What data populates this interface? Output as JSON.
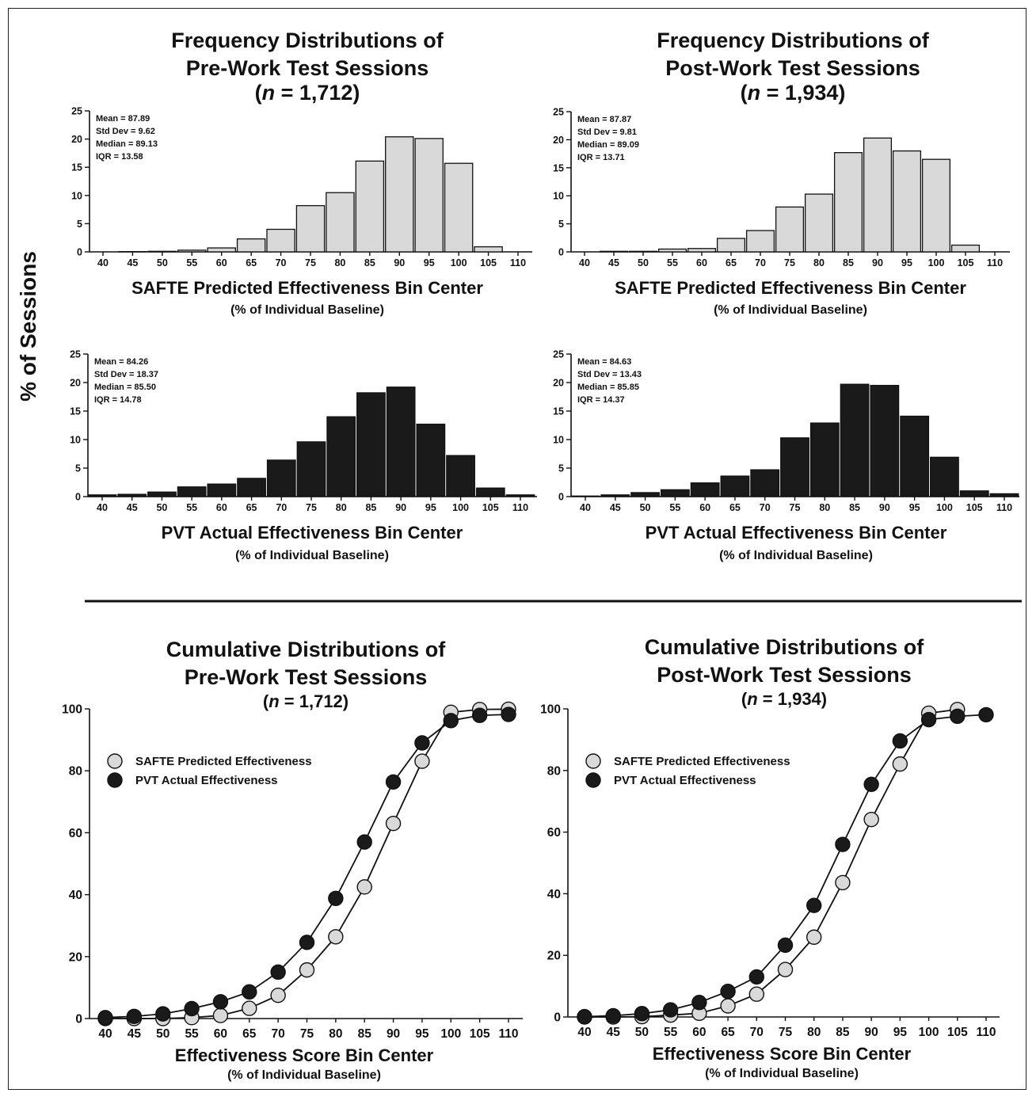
{
  "figure": {
    "y_label": "% of Sessions",
    "panel_titles": {
      "freq_pre": [
        "Frequency Distributions of",
        "Pre-Work Test Sessions"
      ],
      "freq_post": [
        "Frequency Distributions of",
        "Post-Work Test Sessions"
      ],
      "cum_pre": [
        "Cumulative Distributions of",
        "Pre-Work Test Sessions"
      ],
      "cum_post": [
        "Cumulative Distributions of",
        "Post-Work Test Sessions"
      ]
    },
    "n_pre": "1,712",
    "n_post": "1,934",
    "n_prefix": "n",
    "n_eq": " = "
  },
  "chart_data": [
    {
      "id": "safte_pre",
      "type": "bar",
      "xlabel": "SAFTE Predicted Effectiveness Bin Center",
      "xsublabel": "(% of Individual Baseline)",
      "categories": [
        40,
        45,
        50,
        55,
        60,
        65,
        70,
        75,
        80,
        85,
        90,
        95,
        100,
        105,
        110
      ],
      "values": [
        0.0,
        0.05,
        0.1,
        0.3,
        0.7,
        2.3,
        4.0,
        8.2,
        10.5,
        16.1,
        20.4,
        20.1,
        15.7,
        0.9,
        0.0
      ],
      "ylim": [
        0,
        25
      ],
      "yticks": [
        0,
        5,
        10,
        15,
        20,
        25
      ],
      "stats": [
        "Mean = 87.89",
        "Std Dev = 9.62",
        "Median = 89.13",
        "IQR = 13.58"
      ],
      "color": "#d9d9d9"
    },
    {
      "id": "safte_post",
      "type": "bar",
      "xlabel": "SAFTE Predicted Effectiveness Bin Center",
      "xsublabel": "(% of Individual Baseline)",
      "categories": [
        40,
        45,
        50,
        55,
        60,
        65,
        70,
        75,
        80,
        85,
        90,
        95,
        100,
        105,
        110
      ],
      "values": [
        0.0,
        0.1,
        0.1,
        0.5,
        0.6,
        2.4,
        3.8,
        8.0,
        10.3,
        17.7,
        20.3,
        18.0,
        16.5,
        1.2,
        0.0
      ],
      "ylim": [
        0,
        25
      ],
      "yticks": [
        0,
        5,
        10,
        15,
        20,
        25
      ],
      "stats": [
        "Mean = 87.87",
        "Std Dev = 9.81",
        "Median = 89.09",
        "IQR = 13.71"
      ],
      "color": "#d9d9d9"
    },
    {
      "id": "pvt_pre",
      "type": "bar",
      "xlabel": "PVT Actual Effectiveness Bin Center",
      "xsublabel": "(% of Individual Baseline)",
      "categories": [
        40,
        45,
        50,
        55,
        60,
        65,
        70,
        75,
        80,
        85,
        90,
        95,
        100,
        105,
        110
      ],
      "values": [
        0.3,
        0.4,
        0.8,
        1.7,
        2.2,
        3.2,
        6.4,
        9.6,
        14.0,
        18.2,
        19.2,
        12.7,
        7.2,
        1.5,
        0.3
      ],
      "ylim": [
        0,
        25
      ],
      "yticks": [
        0,
        5,
        10,
        15,
        20,
        25
      ],
      "stats": [
        "Mean = 84.26",
        "Std Dev = 18.37",
        "Median = 85.50",
        "IQR = 14.78"
      ],
      "color": "#1a1a1a"
    },
    {
      "id": "pvt_post",
      "type": "bar",
      "xlabel": "PVT Actual Effectiveness Bin Center",
      "xsublabel": "(% of Individual Baseline)",
      "categories": [
        40,
        45,
        50,
        55,
        60,
        65,
        70,
        75,
        80,
        85,
        90,
        95,
        100,
        105,
        110
      ],
      "values": [
        0.1,
        0.3,
        0.7,
        1.2,
        2.4,
        3.6,
        4.7,
        10.3,
        12.9,
        19.7,
        19.5,
        14.1,
        6.9,
        1.0,
        0.5
      ],
      "ylim": [
        0,
        25
      ],
      "yticks": [
        0,
        5,
        10,
        15,
        20,
        25
      ],
      "stats": [
        "Mean = 84.63",
        "Std Dev = 13.43",
        "Median = 85.85",
        "IQR = 14.37"
      ],
      "color": "#1a1a1a"
    },
    {
      "id": "cum_pre",
      "type": "line",
      "xlabel": "Effectiveness Score Bin Center",
      "xsublabel": "(% of Individual Baseline)",
      "x": [
        40,
        45,
        50,
        55,
        60,
        65,
        70,
        75,
        80,
        85,
        90,
        95,
        100,
        105,
        110
      ],
      "ylim": [
        0,
        100
      ],
      "yticks": [
        0,
        20,
        40,
        60,
        80,
        100
      ],
      "legend_position": "top-left",
      "series": [
        {
          "name": "SAFTE Predicted Effectiveness",
          "color": "#d9d9d9",
          "values": [
            0,
            0,
            0,
            0.3,
            1.0,
            3.3,
            7.5,
            15.7,
            26.4,
            42.5,
            63.0,
            83.1,
            98.9,
            99.8,
            99.9
          ]
        },
        {
          "name": "PVT Actual Effectiveness",
          "color": "#1a1a1a",
          "values": [
            0.3,
            0.7,
            1.5,
            3.2,
            5.4,
            8.6,
            15.0,
            24.6,
            38.8,
            57.0,
            76.4,
            89.0,
            96.2,
            97.9,
            98.2
          ]
        }
      ]
    },
    {
      "id": "cum_post",
      "type": "line",
      "xlabel": "Effectiveness Score Bin Center",
      "xsublabel": "(% of Individual Baseline)",
      "x": [
        40,
        45,
        50,
        55,
        60,
        65,
        70,
        75,
        80,
        85,
        90,
        95,
        100,
        105,
        110
      ],
      "ylim": [
        0,
        100
      ],
      "yticks": [
        0,
        20,
        40,
        60,
        80,
        100
      ],
      "legend_position": "top-left",
      "series": [
        {
          "name": "SAFTE Predicted Effectiveness",
          "color": "#d9d9d9",
          "values": [
            0,
            0,
            0.1,
            0.6,
            1.2,
            3.6,
            7.4,
            15.4,
            25.9,
            43.6,
            64.1,
            82.1,
            98.6,
            99.8,
            null
          ]
        },
        {
          "name": "PVT Actual Effectiveness",
          "color": "#1a1a1a",
          "values": [
            0.1,
            0.4,
            1.1,
            2.3,
            4.7,
            8.3,
            13.0,
            23.3,
            36.2,
            56.0,
            75.5,
            89.6,
            96.5,
            97.6,
            98.1
          ]
        }
      ]
    }
  ]
}
